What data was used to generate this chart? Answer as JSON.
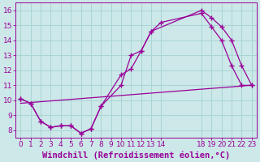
{
  "xlabel": "Windchill (Refroidissement éolien,°C)",
  "bg_color": "#cce8e8",
  "grid_color": "#aad4d4",
  "line_color": "#990099",
  "x_ticks": [
    0,
    1,
    2,
    3,
    4,
    5,
    6,
    7,
    8,
    9,
    10,
    11,
    12,
    13,
    14,
    18,
    19,
    20,
    21,
    22,
    23
  ],
  "ylim": [
    7.5,
    16.5
  ],
  "xlim": [
    -0.5,
    23.5
  ],
  "line1_x": [
    0,
    1,
    2,
    3,
    4,
    5,
    6,
    7,
    8,
    10,
    11,
    12,
    13,
    18,
    19,
    20,
    21,
    22,
    23
  ],
  "line1_y": [
    10.1,
    9.8,
    8.6,
    8.2,
    8.3,
    8.3,
    7.8,
    8.1,
    9.6,
    11.0,
    13.0,
    13.3,
    14.6,
    16.0,
    15.5,
    14.9,
    14.0,
    12.3,
    11.0
  ],
  "line2_x": [
    0,
    1,
    2,
    3,
    4,
    5,
    6,
    7,
    8,
    10,
    11,
    12,
    13,
    14,
    18,
    19,
    20,
    21,
    22,
    23
  ],
  "line2_y": [
    10.1,
    9.8,
    8.6,
    8.2,
    8.3,
    8.3,
    7.8,
    8.1,
    9.6,
    11.7,
    12.1,
    13.3,
    14.6,
    15.2,
    15.8,
    14.9,
    14.0,
    12.3,
    11.0,
    11.0
  ],
  "line3_x": [
    0,
    23
  ],
  "line3_y": [
    9.8,
    11.0
  ],
  "yticks": [
    8,
    9,
    10,
    11,
    12,
    13,
    14,
    15,
    16
  ],
  "tick_fontsize": 6.5,
  "xlabel_fontsize": 7.5
}
